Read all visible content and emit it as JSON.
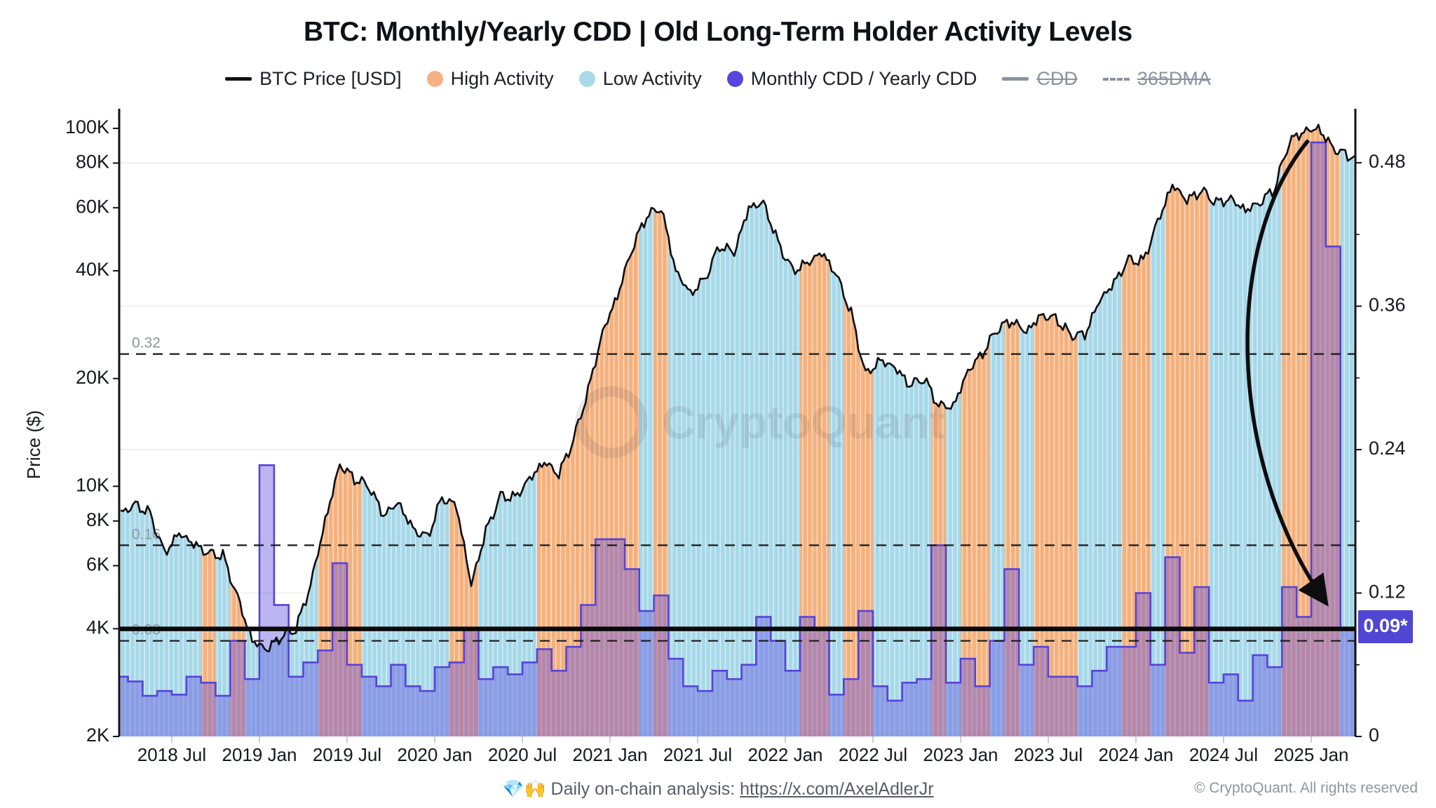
{
  "header": {
    "title": "BTC: Monthly/Yearly CDD | Old Long-Term Holder Activity Levels"
  },
  "legend": {
    "items": [
      {
        "id": "btc-price",
        "label": "BTC Price [USD]",
        "marker": "line",
        "color": "#111111",
        "disabled": false
      },
      {
        "id": "high-activity",
        "label": "High Activity",
        "marker": "dot",
        "color": "#f5b183",
        "disabled": false
      },
      {
        "id": "low-activity",
        "label": "Low Activity",
        "marker": "dot",
        "color": "#a8d9e9",
        "disabled": false
      },
      {
        "id": "monthly-cdd",
        "label": "Monthly CDD / Yearly CDD",
        "marker": "dot",
        "color": "#5746dd",
        "disabled": false
      },
      {
        "id": "cdd",
        "label": "CDD",
        "marker": "line",
        "color": "#8b91a0",
        "disabled": true
      },
      {
        "id": "365dma",
        "label": "365DMA",
        "marker": "dash",
        "color": "#8b91a0",
        "disabled": true
      }
    ]
  },
  "footer": {
    "note_prefix": "💎🙌 Daily on-chain analysis: ",
    "link_text": "https://x.com/AxelAdlerJr",
    "copyright": "© CryptoQuant. All rights reserved"
  },
  "watermark": {
    "text": "CryptoQuant"
  },
  "chart_data": {
    "type": "composite (area + step bars + line)",
    "title": "BTC: Monthly/Yearly CDD | Old Long-Term Holder Activity Levels",
    "ylabel_left": "Price ($)",
    "y_left_scale": "log",
    "y_left_ticks": [
      "100K",
      "80K",
      "60K",
      "40K",
      "20K",
      "10K",
      "8K",
      "6K",
      "4K",
      "2K"
    ],
    "y_left_tick_values": [
      100000,
      80000,
      60000,
      40000,
      20000,
      10000,
      8000,
      6000,
      4000,
      2000
    ],
    "y_left_range": [
      2000,
      110000
    ],
    "y_right_scale": "linear",
    "y_right_ticks": [
      "0.48",
      "0.36",
      "0.24",
      "0.12",
      "0"
    ],
    "y_right_tick_values": [
      0.48,
      0.36,
      0.24,
      0.12,
      0
    ],
    "y_right_range": [
      0,
      0.522
    ],
    "x_ticks": [
      "2018 Jul",
      "2019 Jan",
      "2019 Jul",
      "2020 Jan",
      "2020 Jul",
      "2021 Jan",
      "2021 Jul",
      "2022 Jan",
      "2022 Jul",
      "2023 Jan",
      "2023 Jul",
      "2024 Jan",
      "2024 Jul",
      "2025 Jan"
    ],
    "grid": "faint horizontal lines at right-axis ticks",
    "legend_position": "top center",
    "reference_lines": {
      "dashed_levels": [
        {
          "value": 0.32,
          "label": "0.32"
        },
        {
          "value": 0.16,
          "label": "0.16"
        },
        {
          "value": 0.08,
          "label": "0.08"
        }
      ],
      "current_level": {
        "value": 0.09,
        "badge_label": "0.09*",
        "badge_color": "#4f46d4",
        "line_color": "#0a0a0a"
      }
    },
    "annotation_arrow": {
      "from_month": "2025-01",
      "from_value_right_axis": 0.497,
      "points_to": "current 0.09* badge"
    },
    "months_schema": [
      "month (YYYY-MM)",
      "btc_price_usd (month avg, log axis)",
      "monthly_cdd_over_yearly_cdd (right axis)",
      "activity (H=High/orange, L=Low/blue)"
    ],
    "months": [
      [
        "2018-03",
        8400,
        0.05,
        "L"
      ],
      [
        "2018-04",
        8900,
        0.046,
        "L"
      ],
      [
        "2018-05",
        8400,
        0.034,
        "L"
      ],
      [
        "2018-06",
        6500,
        0.038,
        "L"
      ],
      [
        "2018-07",
        7400,
        0.035,
        "L"
      ],
      [
        "2018-08",
        6900,
        0.05,
        "L"
      ],
      [
        "2018-09",
        6500,
        0.045,
        "H"
      ],
      [
        "2018-10",
        6400,
        0.034,
        "L"
      ],
      [
        "2018-11",
        4900,
        0.08,
        "H"
      ],
      [
        "2018-12",
        3700,
        0.048,
        "L"
      ],
      [
        "2019-01",
        3500,
        0.227,
        "L"
      ],
      [
        "2019-02",
        3800,
        0.11,
        "L"
      ],
      [
        "2019-03",
        4000,
        0.05,
        "L"
      ],
      [
        "2019-04",
        5300,
        0.062,
        "L"
      ],
      [
        "2019-05",
        8000,
        0.072,
        "H"
      ],
      [
        "2019-06",
        11500,
        0.145,
        "H"
      ],
      [
        "2019-07",
        10500,
        0.06,
        "H"
      ],
      [
        "2019-08",
        10000,
        0.05,
        "L"
      ],
      [
        "2019-09",
        8300,
        0.042,
        "L"
      ],
      [
        "2019-10",
        9000,
        0.06,
        "L"
      ],
      [
        "2019-11",
        7600,
        0.042,
        "L"
      ],
      [
        "2019-12",
        7200,
        0.038,
        "L"
      ],
      [
        "2020-01",
        9300,
        0.058,
        "L"
      ],
      [
        "2020-02",
        8800,
        0.062,
        "H"
      ],
      [
        "2020-03",
        5300,
        0.09,
        "H"
      ],
      [
        "2020-04",
        7500,
        0.048,
        "L"
      ],
      [
        "2020-05",
        9400,
        0.058,
        "L"
      ],
      [
        "2020-06",
        9300,
        0.052,
        "L"
      ],
      [
        "2020-07",
        10500,
        0.062,
        "L"
      ],
      [
        "2020-08",
        11700,
        0.073,
        "H"
      ],
      [
        "2020-09",
        10800,
        0.055,
        "H"
      ],
      [
        "2020-10",
        13500,
        0.075,
        "H"
      ],
      [
        "2020-11",
        18500,
        0.11,
        "H"
      ],
      [
        "2020-12",
        27000,
        0.165,
        "H"
      ],
      [
        "2021-01",
        34000,
        0.165,
        "H"
      ],
      [
        "2021-02",
        46000,
        0.14,
        "H"
      ],
      [
        "2021-03",
        57000,
        0.105,
        "L"
      ],
      [
        "2021-04",
        60000,
        0.118,
        "H"
      ],
      [
        "2021-05",
        40000,
        0.065,
        "L"
      ],
      [
        "2021-06",
        34500,
        0.042,
        "L"
      ],
      [
        "2021-07",
        38000,
        0.038,
        "L"
      ],
      [
        "2021-08",
        47000,
        0.055,
        "L"
      ],
      [
        "2021-09",
        45000,
        0.048,
        "L"
      ],
      [
        "2021-10",
        60000,
        0.06,
        "L"
      ],
      [
        "2021-11",
        62000,
        0.1,
        "L"
      ],
      [
        "2021-12",
        48000,
        0.08,
        "L"
      ],
      [
        "2022-01",
        40000,
        0.055,
        "L"
      ],
      [
        "2022-02",
        42000,
        0.1,
        "H"
      ],
      [
        "2022-03",
        45000,
        0.09,
        "H"
      ],
      [
        "2022-04",
        39000,
        0.035,
        "L"
      ],
      [
        "2022-05",
        30500,
        0.048,
        "H"
      ],
      [
        "2022-06",
        20500,
        0.105,
        "H"
      ],
      [
        "2022-07",
        22500,
        0.042,
        "L"
      ],
      [
        "2022-08",
        21500,
        0.03,
        "L"
      ],
      [
        "2022-09",
        19200,
        0.045,
        "L"
      ],
      [
        "2022-10",
        20000,
        0.048,
        "L"
      ],
      [
        "2022-11",
        16800,
        0.16,
        "H"
      ],
      [
        "2022-12",
        16700,
        0.045,
        "L"
      ],
      [
        "2023-01",
        21000,
        0.065,
        "H"
      ],
      [
        "2023-02",
        23500,
        0.042,
        "H"
      ],
      [
        "2023-03",
        27500,
        0.08,
        "L"
      ],
      [
        "2023-04",
        29000,
        0.14,
        "H"
      ],
      [
        "2023-05",
        27000,
        0.06,
        "L"
      ],
      [
        "2023-06",
        30000,
        0.075,
        "H"
      ],
      [
        "2023-07",
        29500,
        0.05,
        "H"
      ],
      [
        "2023-08",
        26500,
        0.05,
        "H"
      ],
      [
        "2023-09",
        26500,
        0.042,
        "L"
      ],
      [
        "2023-10",
        33000,
        0.055,
        "L"
      ],
      [
        "2023-11",
        37000,
        0.075,
        "L"
      ],
      [
        "2023-12",
        43000,
        0.075,
        "H"
      ],
      [
        "2024-01",
        42500,
        0.12,
        "H"
      ],
      [
        "2024-02",
        55000,
        0.06,
        "L"
      ],
      [
        "2024-03",
        69500,
        0.15,
        "H"
      ],
      [
        "2024-04",
        63000,
        0.07,
        "H"
      ],
      [
        "2024-05",
        67000,
        0.125,
        "H"
      ],
      [
        "2024-06",
        62000,
        0.045,
        "L"
      ],
      [
        "2024-07",
        63500,
        0.052,
        "L"
      ],
      [
        "2024-08",
        59000,
        0.03,
        "L"
      ],
      [
        "2024-09",
        62000,
        0.068,
        "L"
      ],
      [
        "2024-10",
        68000,
        0.058,
        "L"
      ],
      [
        "2024-11",
        92000,
        0.125,
        "H"
      ],
      [
        "2024-12",
        98000,
        0.1,
        "H"
      ],
      [
        "2025-01",
        100000,
        0.497,
        "H"
      ],
      [
        "2025-02",
        88000,
        0.41,
        "H"
      ],
      [
        "2025-03",
        84000,
        0.09,
        "L"
      ]
    ],
    "colors": {
      "price_line": "#0d0d0f",
      "high_activity_fill": "#f4b07c",
      "low_activity_fill": "#a6d8e8",
      "cdd_bar_fill_rgba": "rgba(96,78,222,0.42)",
      "cdd_bar_outline": "#5743d8",
      "dashed_line": "#1a1a1a",
      "grid_line": "#eef0f3",
      "axis_line": "#111318",
      "muted_label": "#8e939e",
      "badge_fill": "#4f46d4",
      "badge_text": "#ffffff"
    }
  }
}
